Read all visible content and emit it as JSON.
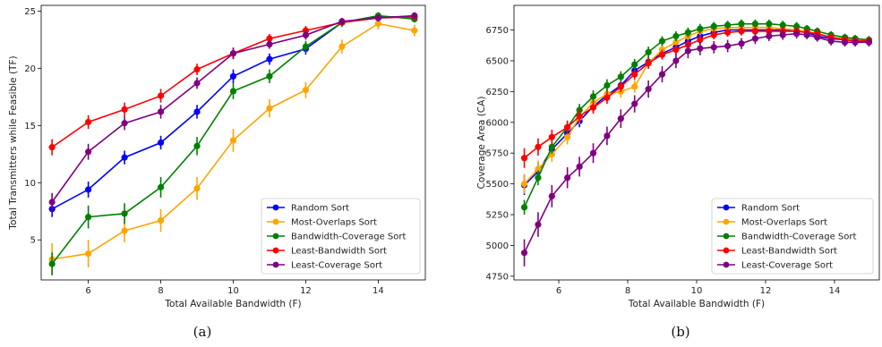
{
  "charts": [
    {
      "type": "line",
      "caption": "(a)",
      "xlabel": "Total Available Bandwidth (F)",
      "ylabel": "Total Transmitters while Feasible (TF)",
      "xlim": [
        4.7,
        15.3
      ],
      "ylim": [
        1.5,
        25.5
      ],
      "xticks": [
        6,
        8,
        10,
        12,
        14
      ],
      "yticks": [
        5,
        10,
        15,
        20,
        25
      ],
      "legend_position": "lower-right",
      "series": [
        {
          "name": "Random Sort",
          "color": "#0000ff",
          "x": [
            5,
            6,
            7,
            8,
            9,
            10,
            11,
            12,
            13,
            14,
            15
          ],
          "y": [
            7.7,
            9.4,
            12.2,
            13.5,
            16.2,
            19.3,
            20.8,
            21.7,
            24.0,
            24.5,
            24.5
          ],
          "err": [
            0.7,
            0.7,
            0.6,
            0.6,
            0.6,
            0.6,
            0.5,
            0.5,
            0.3,
            0.3,
            0.3
          ]
        },
        {
          "name": "Most-Overlaps Sort",
          "color": "#ffa500",
          "x": [
            5,
            6,
            7,
            8,
            9,
            10,
            11,
            12,
            13,
            14,
            15
          ],
          "y": [
            3.3,
            3.8,
            5.8,
            6.7,
            9.5,
            13.7,
            16.5,
            18.1,
            21.9,
            23.9,
            23.3
          ],
          "err": [
            1.4,
            1.2,
            1.0,
            1.0,
            1.0,
            1.0,
            0.8,
            0.7,
            0.6,
            0.5,
            0.5
          ]
        },
        {
          "name": "Bandwidth-Coverage Sort",
          "color": "#008000",
          "x": [
            5,
            6,
            7,
            8,
            9,
            10,
            11,
            12,
            13,
            14,
            15
          ],
          "y": [
            2.9,
            7.0,
            7.3,
            9.6,
            13.2,
            18.0,
            19.3,
            21.9,
            24.0,
            24.6,
            24.3
          ],
          "err": [
            1.0,
            1.0,
            0.9,
            0.9,
            0.8,
            0.7,
            0.6,
            0.5,
            0.4,
            0.3,
            0.3
          ]
        },
        {
          "name": "Least-Bandwidth Sort",
          "color": "#ff0000",
          "x": [
            5,
            6,
            7,
            8,
            9,
            10,
            11,
            12,
            13,
            14,
            15
          ],
          "y": [
            13.1,
            15.3,
            16.4,
            17.6,
            19.9,
            21.3,
            22.6,
            23.3,
            24.0,
            24.4,
            24.5
          ],
          "err": [
            0.7,
            0.6,
            0.6,
            0.6,
            0.5,
            0.5,
            0.4,
            0.4,
            0.3,
            0.3,
            0.3
          ]
        },
        {
          "name": "Least-Coverage Sort",
          "color": "#800080",
          "x": [
            5,
            6,
            7,
            8,
            9,
            10,
            11,
            12,
            13,
            14,
            15
          ],
          "y": [
            8.3,
            12.7,
            15.2,
            16.2,
            18.7,
            21.3,
            22.1,
            22.9,
            24.1,
            24.4,
            24.6
          ],
          "err": [
            0.8,
            0.7,
            0.6,
            0.6,
            0.5,
            0.5,
            0.4,
            0.4,
            0.3,
            0.3,
            0.3
          ]
        }
      ]
    },
    {
      "type": "line",
      "caption": "(b)",
      "xlabel": "Total Available Bandwidth (F)",
      "ylabel": "Coverage Area (CA)",
      "xlim": [
        4.7,
        15.3
      ],
      "ylim": [
        4720,
        6950
      ],
      "xticks": [
        6,
        8,
        10,
        12,
        14
      ],
      "yticks": [
        4750,
        5000,
        5250,
        5500,
        5750,
        6000,
        6250,
        6500,
        6750
      ],
      "legend_position": "lower-right",
      "series": [
        {
          "name": "Random Sort",
          "color": "#0000ff",
          "x": [
            5,
            5.4,
            5.8,
            6.25,
            6.6,
            7.0,
            7.4,
            7.8,
            8.2,
            8.6,
            9.0,
            9.4,
            9.75,
            10.1,
            10.5,
            10.9,
            11.3,
            11.7,
            12.1,
            12.5,
            12.9,
            13.2,
            13.5,
            13.9,
            14.3,
            14.6,
            15.0
          ],
          "y": [
            5490,
            5600,
            5780,
            5910,
            6010,
            6130,
            6220,
            6300,
            6420,
            6490,
            6560,
            6610,
            6660,
            6700,
            6730,
            6750,
            6750,
            6750,
            6750,
            6750,
            6740,
            6730,
            6700,
            6680,
            6670,
            6660,
            6660
          ],
          "err": [
            80,
            70,
            60,
            55,
            50,
            50,
            50,
            45,
            45,
            45,
            40,
            40,
            40,
            40,
            35,
            35,
            35,
            35,
            35,
            35,
            35,
            30,
            30,
            30,
            30,
            30,
            30
          ]
        },
        {
          "name": "Most-Overlaps Sort",
          "color": "#ffa500",
          "x": [
            5,
            5.4,
            5.8,
            6.25,
            6.6,
            7.0,
            7.4,
            7.8,
            8.2,
            8.6,
            9.0,
            9.4,
            9.75,
            10.1,
            10.5,
            10.9,
            11.3,
            11.7,
            12.1,
            12.5,
            12.9,
            13.2,
            13.5,
            13.9,
            14.3,
            14.6,
            15.0
          ],
          "y": [
            5500,
            5620,
            5740,
            5880,
            6040,
            6160,
            6230,
            6250,
            6290,
            6480,
            6590,
            6650,
            6700,
            6740,
            6760,
            6770,
            6770,
            6770,
            6770,
            6760,
            6750,
            6740,
            6720,
            6690,
            6680,
            6670,
            6670
          ],
          "err": [
            80,
            70,
            60,
            60,
            55,
            55,
            50,
            50,
            50,
            45,
            45,
            40,
            40,
            40,
            35,
            35,
            35,
            35,
            35,
            35,
            35,
            30,
            30,
            30,
            30,
            30,
            30
          ]
        },
        {
          "name": "Bandwidth-Coverage Sort",
          "color": "#008000",
          "x": [
            5,
            5.4,
            5.8,
            6.25,
            6.6,
            7.0,
            7.4,
            7.8,
            8.2,
            8.6,
            9.0,
            9.4,
            9.75,
            10.1,
            10.5,
            10.9,
            11.3,
            11.7,
            12.1,
            12.5,
            12.9,
            13.2,
            13.5,
            13.9,
            14.3,
            14.6,
            15.0
          ],
          "y": [
            5310,
            5550,
            5800,
            5960,
            6100,
            6210,
            6300,
            6370,
            6470,
            6570,
            6660,
            6700,
            6730,
            6760,
            6780,
            6790,
            6800,
            6800,
            6800,
            6790,
            6780,
            6760,
            6740,
            6710,
            6690,
            6680,
            6670
          ],
          "err": [
            60,
            60,
            55,
            50,
            50,
            50,
            50,
            45,
            45,
            45,
            40,
            40,
            40,
            40,
            35,
            35,
            35,
            35,
            35,
            35,
            35,
            30,
            30,
            30,
            30,
            30,
            30
          ]
        },
        {
          "name": "Least-Bandwidth Sort",
          "color": "#ff0000",
          "x": [
            5,
            5.4,
            5.8,
            6.25,
            6.6,
            7.0,
            7.4,
            7.8,
            8.2,
            8.6,
            9.0,
            9.4,
            9.75,
            10.1,
            10.5,
            10.9,
            11.3,
            11.7,
            12.1,
            12.5,
            12.9,
            13.2,
            13.5,
            13.9,
            14.3,
            14.6,
            15.0
          ],
          "y": [
            5710,
            5800,
            5880,
            5960,
            6050,
            6120,
            6200,
            6290,
            6390,
            6480,
            6550,
            6590,
            6630,
            6670,
            6710,
            6730,
            6740,
            6740,
            6740,
            6740,
            6740,
            6730,
            6720,
            6690,
            6670,
            6660,
            6660
          ],
          "err": [
            80,
            70,
            60,
            55,
            50,
            50,
            50,
            45,
            45,
            45,
            40,
            40,
            40,
            40,
            35,
            35,
            35,
            35,
            35,
            35,
            35,
            30,
            30,
            30,
            30,
            30,
            30
          ]
        },
        {
          "name": "Least-Coverage Sort",
          "color": "#800080",
          "x": [
            5,
            5.4,
            5.8,
            6.25,
            6.6,
            7.0,
            7.4,
            7.8,
            8.2,
            8.6,
            9.0,
            9.4,
            9.75,
            10.1,
            10.5,
            10.9,
            11.3,
            11.7,
            12.1,
            12.5,
            12.9,
            13.2,
            13.5,
            13.9,
            14.3,
            14.6,
            15.0
          ],
          "y": [
            4940,
            5170,
            5400,
            5550,
            5640,
            5750,
            5890,
            6030,
            6150,
            6270,
            6390,
            6500,
            6580,
            6600,
            6610,
            6620,
            6640,
            6680,
            6700,
            6710,
            6720,
            6710,
            6690,
            6660,
            6650,
            6650,
            6650
          ],
          "err": [
            110,
            100,
            90,
            85,
            80,
            80,
            75,
            75,
            70,
            70,
            65,
            60,
            60,
            55,
            50,
            50,
            45,
            45,
            40,
            40,
            40,
            35,
            35,
            35,
            35,
            35,
            35
          ]
        }
      ]
    }
  ]
}
